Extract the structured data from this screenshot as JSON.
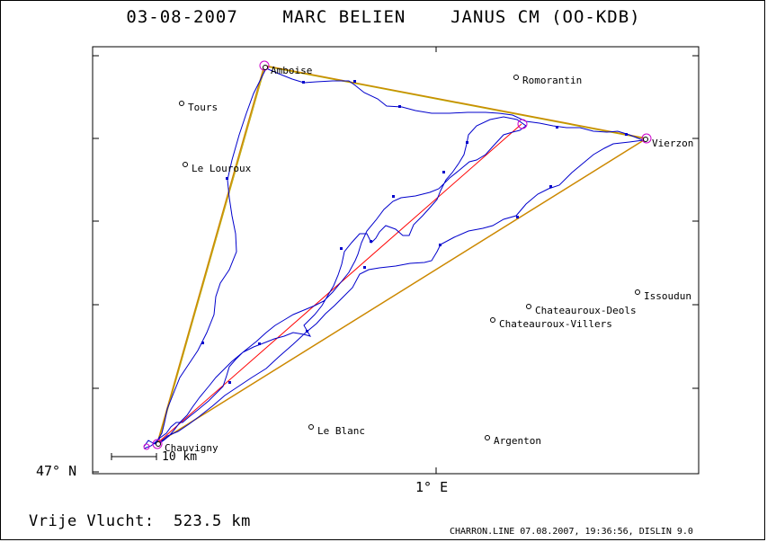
{
  "title": "03-08-2007    MARC BELIEN    JANUS CM (OO-KDB)",
  "axes": {
    "lat_label": "47° N",
    "lon_label": "1° E"
  },
  "scale_bar": {
    "label": "10 km"
  },
  "distance_text": "Vrije Vlucht:  523.5 km",
  "footer": "CHARRON.LINE 07.08.2007, 19:36:56, DISLIN 9.0",
  "towns": [
    {
      "name": "Amboise"
    },
    {
      "name": "Romorantin"
    },
    {
      "name": "Tours"
    },
    {
      "name": "Le Louroux"
    },
    {
      "name": "Vierzon"
    },
    {
      "name": "Issoudun"
    },
    {
      "name": "Chateauroux-Deols"
    },
    {
      "name": "Chateauroux-Villers"
    },
    {
      "name": "Le Blanc"
    },
    {
      "name": "Argenton"
    },
    {
      "name": "Chauvigny"
    }
  ],
  "colors": {
    "track": "#0000cc",
    "triangle": "#cc8800",
    "declared_leg": "#ff0000",
    "turnpoint": "#cc00cc"
  }
}
